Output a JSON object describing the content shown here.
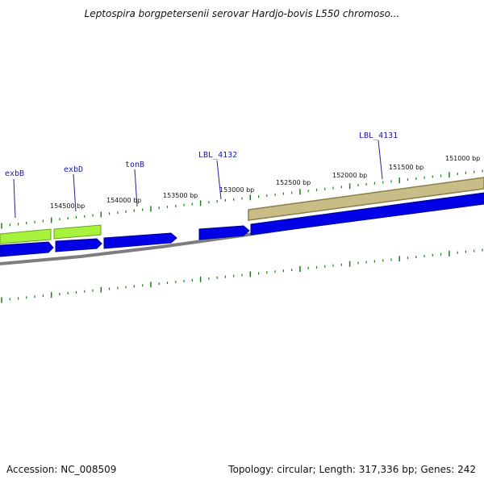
{
  "header": {
    "title": "Leptospira borgpetersenii serovar Hardjo-bovis L550 chromoso..."
  },
  "footer": {
    "accession": "Accession: NC_008509",
    "summary": "Topology: circular; Length: 317,336 bp; Genes: 242"
  },
  "map": {
    "colors": {
      "backbone": "#8c8c8c",
      "forward_cds": "#0000e6",
      "exb_genes": "#a6f23c",
      "lbl_4131": "#c8bd86",
      "tick": "#1a7f1a",
      "label": "#1a1aa6"
    },
    "position_labels": [
      {
        "label": "154500 bp"
      },
      {
        "label": "154000 bp"
      },
      {
        "label": "153500 bp"
      },
      {
        "label": "153000 bp"
      },
      {
        "label": "152500 bp"
      },
      {
        "label": "152000 bp"
      },
      {
        "label": "151500 bp"
      },
      {
        "label": "151000 bp"
      }
    ],
    "genes": [
      {
        "name": "exbB"
      },
      {
        "name": "exbD"
      },
      {
        "name": "tonB"
      },
      {
        "name": "LBL_4132"
      },
      {
        "name": "LBL_4131"
      }
    ]
  }
}
